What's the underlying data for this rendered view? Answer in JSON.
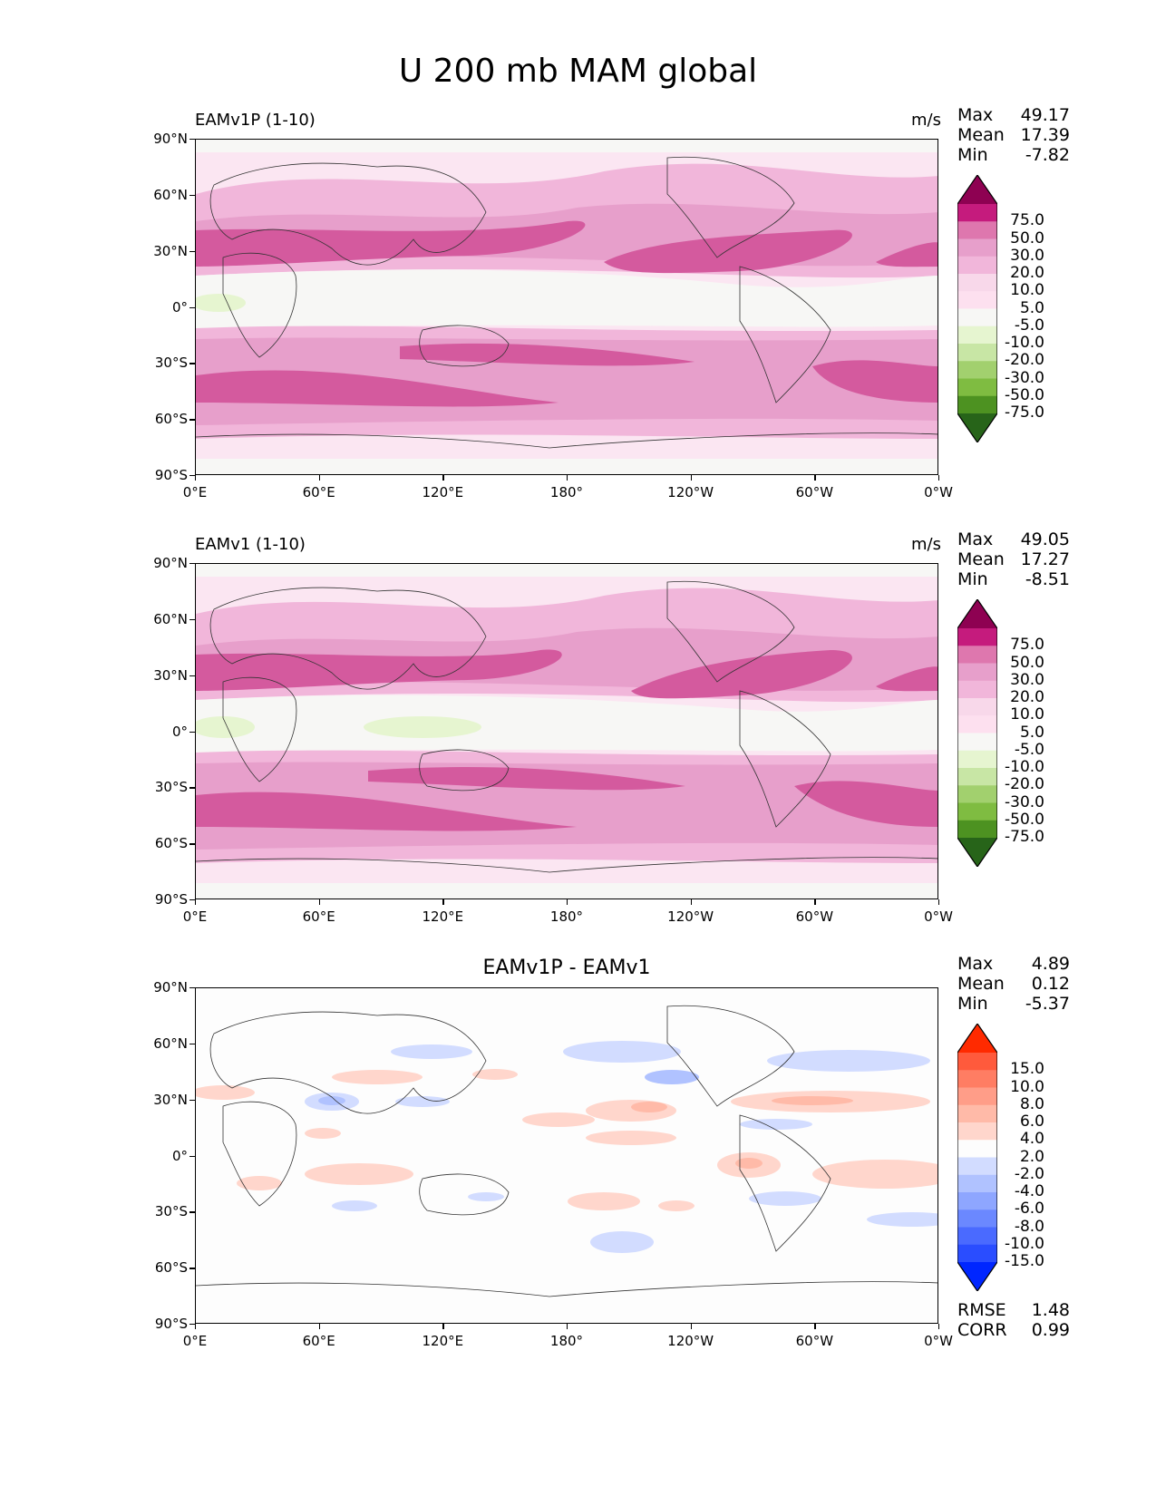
{
  "figure": {
    "title": "U 200 mb MAM global"
  },
  "axes": {
    "y_ticks": [
      "90°N",
      "60°N",
      "30°N",
      "0°",
      "30°S",
      "60°S",
      "90°S"
    ],
    "x_ticks": [
      "0°E",
      "60°E",
      "120°E",
      "180°",
      "120°W",
      "60°W",
      "0°W"
    ]
  },
  "panels": [
    {
      "title": "EAMv1P (1-10)",
      "units": "m/s",
      "stats": [
        {
          "label": "Max",
          "value": "49.17"
        },
        {
          "label": "Mean",
          "value": "17.39"
        },
        {
          "label": "Min",
          "value": "-7.82"
        }
      ],
      "colorbar": {
        "labels": [
          "75.0",
          "50.0",
          "30.0",
          "20.0",
          "10.0",
          "5.0",
          "-5.0",
          "-10.0",
          "-20.0",
          "-30.0",
          "-50.0",
          "-75.0"
        ],
        "colors": [
          "#8e0152",
          "#c51b7d",
          "#de77ae",
          "#e79fcb",
          "#f1b6da",
          "#f8d8ea",
          "#fde0ef",
          "#f7f7f5",
          "#e6f5d0",
          "#c8e6a5",
          "#a2d06e",
          "#7fbc41",
          "#4d9221",
          "#276419"
        ]
      }
    },
    {
      "title": "EAMv1 (1-10)",
      "units": "m/s",
      "stats": [
        {
          "label": "Max",
          "value": "49.05"
        },
        {
          "label": "Mean",
          "value": "17.27"
        },
        {
          "label": "Min",
          "value": "-8.51"
        }
      ],
      "colorbar": {
        "labels": [
          "75.0",
          "50.0",
          "30.0",
          "20.0",
          "10.0",
          "5.0",
          "-5.0",
          "-10.0",
          "-20.0",
          "-30.0",
          "-50.0",
          "-75.0"
        ],
        "colors": [
          "#8e0152",
          "#c51b7d",
          "#de77ae",
          "#e79fcb",
          "#f1b6da",
          "#f8d8ea",
          "#fde0ef",
          "#f7f7f5",
          "#e6f5d0",
          "#c8e6a5",
          "#a2d06e",
          "#7fbc41",
          "#4d9221",
          "#276419"
        ]
      }
    },
    {
      "title": "EAMv1P - EAMv1",
      "units": "",
      "stats": [
        {
          "label": "Max",
          "value": "4.89"
        },
        {
          "label": "Mean",
          "value": "0.12"
        },
        {
          "label": "Min",
          "value": "-5.37"
        }
      ],
      "extra_stats": [
        {
          "label": "RMSE",
          "value": "1.48"
        },
        {
          "label": "CORR",
          "value": "0.99"
        }
      ],
      "colorbar": {
        "labels": [
          "15.0",
          "10.0",
          "8.0",
          "6.0",
          "4.0",
          "2.0",
          "-2.0",
          "-4.0",
          "-6.0",
          "-8.0",
          "-10.0",
          "-15.0"
        ],
        "colors": [
          "#ff2a00",
          "#ff5a3c",
          "#ff7d63",
          "#ff9d88",
          "#ffbaa8",
          "#ffd6cc",
          "#fdfdfd",
          "#d2dcff",
          "#b0c2ff",
          "#8ea6ff",
          "#6b88ff",
          "#4a6aff",
          "#2a4dff",
          "#0026ff"
        ]
      }
    }
  ]
}
